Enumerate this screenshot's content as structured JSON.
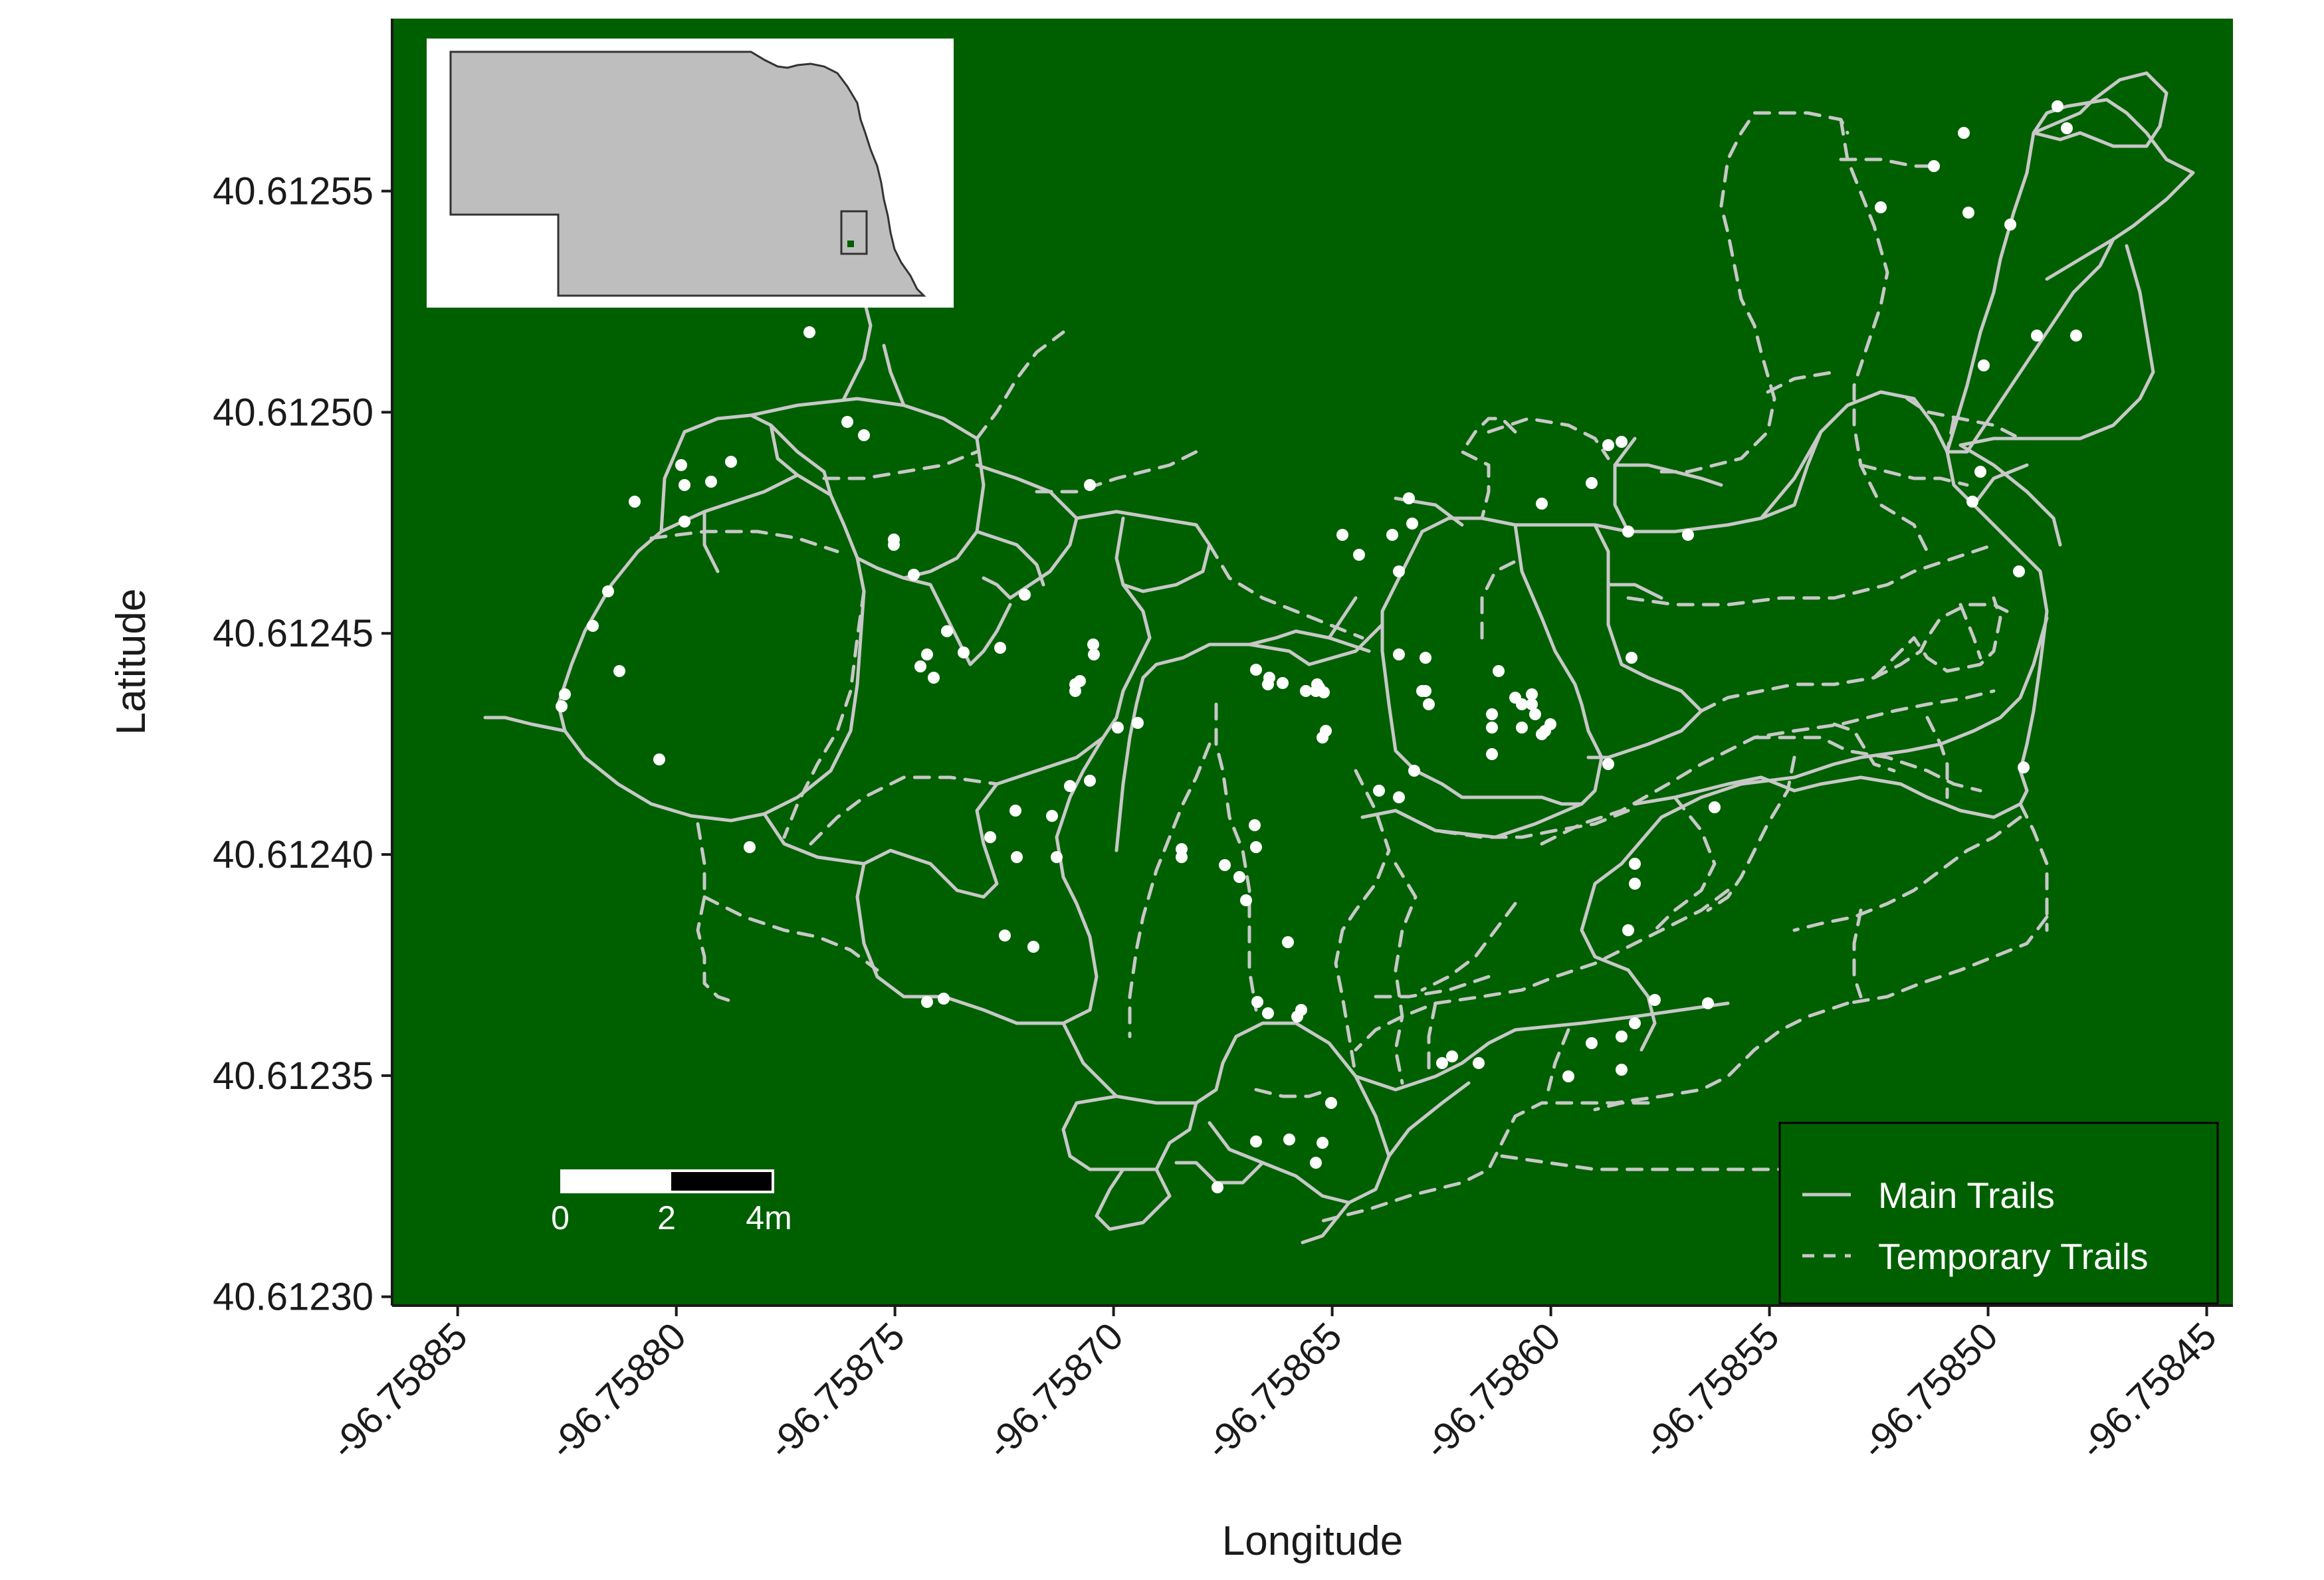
{
  "map": {
    "background_color": "#006000",
    "trail_color": "#c8c8c8",
    "point_color": "#ffffff",
    "x_axis": {
      "title": "Longitude",
      "range": [
        -96.758865,
        -96.758444
      ],
      "ticks": [
        "-96.75885",
        "-96.75880",
        "-96.75875",
        "-96.75870",
        "-96.75865",
        "-96.75860",
        "-96.75855",
        "-96.75850",
        "-96.75845"
      ]
    },
    "y_axis": {
      "title": "Latitude",
      "range": [
        40.612298,
        40.612589
      ],
      "ticks": [
        "40.61255",
        "40.61250",
        "40.61245",
        "40.61240",
        "40.61235",
        "40.61230"
      ]
    },
    "legend": {
      "position": "bottom-right",
      "items": [
        {
          "label": "Main Trails",
          "style": "solid"
        },
        {
          "label": "Temporary Trails",
          "style": "dashed"
        }
      ]
    },
    "scale_bar": {
      "labels": [
        "0",
        "2",
        "4m"
      ]
    },
    "inset": {
      "description_region": "Nebraska",
      "fill": "#bebebe",
      "marker_color": "#006000"
    }
  }
}
